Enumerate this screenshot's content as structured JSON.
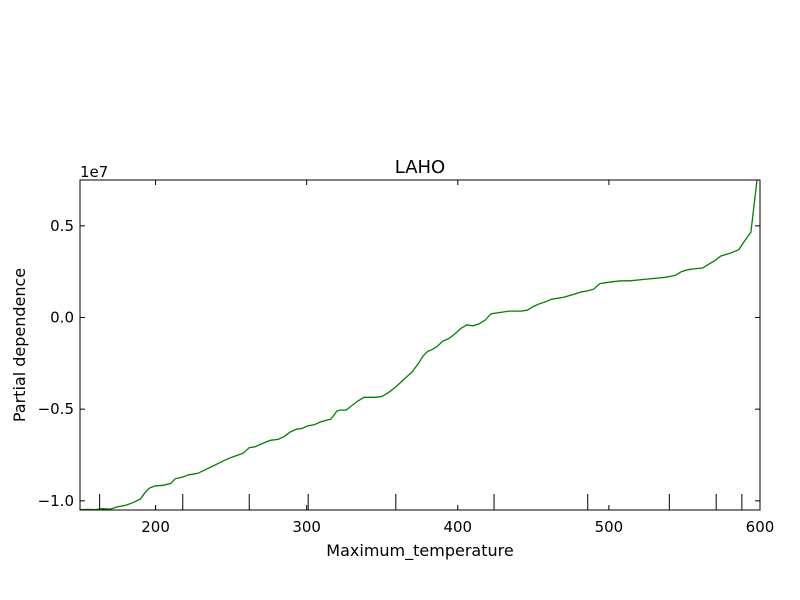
{
  "chart_data": {
    "type": "line",
    "title": "LAHO",
    "xlabel": "Maximum_temperature",
    "ylabel": "Partial dependence",
    "y_offset_label": "1e7",
    "xlim": [
      150,
      600
    ],
    "ylim": [
      -1.05,
      0.75
    ],
    "x_ticks": [
      200,
      300,
      400,
      500,
      600
    ],
    "x_tick_labels": [
      "200",
      "300",
      "400",
      "500",
      "600"
    ],
    "y_ticks": [
      -1.0,
      -0.5,
      0.0,
      0.5
    ],
    "y_tick_labels": [
      "−1.0",
      "−0.5",
      "0.0",
      "0.5"
    ],
    "grid": false,
    "line_color": "#007f00",
    "rug": [
      163,
      218,
      262,
      301,
      359,
      424,
      486,
      540,
      571,
      588
    ],
    "series": [
      {
        "x": [
          150,
          155,
          160,
          165,
          170,
          175,
          180,
          185,
          190,
          193,
          196,
          200,
          205,
          210,
          213,
          218,
          222,
          228,
          233,
          238,
          243,
          248,
          253,
          258,
          262,
          266,
          270,
          276,
          281,
          285,
          289,
          293,
          297,
          301,
          305,
          309,
          313,
          316,
          320,
          322,
          326,
          330,
          334,
          338,
          342,
          346,
          350,
          354,
          358,
          362,
          366,
          370,
          374,
          377,
          380,
          383,
          386,
          390,
          394,
          398,
          402,
          406,
          410,
          414,
          418,
          422,
          426,
          430,
          434,
          438,
          442,
          446,
          450,
          454,
          458,
          462,
          466,
          470,
          474,
          478,
          482,
          486,
          490,
          494,
          498,
          502,
          508,
          514,
          520,
          526,
          532,
          538,
          544,
          548,
          552,
          556,
          562,
          566,
          570,
          574,
          580,
          586,
          590,
          594,
          598
        ],
        "y": [
          -1.048,
          -1.047,
          -1.048,
          -1.043,
          -1.045,
          -1.032,
          -1.025,
          -1.01,
          -0.99,
          -0.955,
          -0.93,
          -0.918,
          -0.915,
          -0.905,
          -0.88,
          -0.87,
          -0.858,
          -0.85,
          -0.83,
          -0.81,
          -0.79,
          -0.77,
          -0.755,
          -0.74,
          -0.71,
          -0.705,
          -0.69,
          -0.67,
          -0.665,
          -0.65,
          -0.625,
          -0.61,
          -0.605,
          -0.59,
          -0.585,
          -0.57,
          -0.56,
          -0.555,
          -0.51,
          -0.505,
          -0.505,
          -0.48,
          -0.455,
          -0.435,
          -0.435,
          -0.435,
          -0.43,
          -0.41,
          -0.385,
          -0.355,
          -0.325,
          -0.295,
          -0.25,
          -0.21,
          -0.185,
          -0.175,
          -0.16,
          -0.13,
          -0.115,
          -0.09,
          -0.06,
          -0.04,
          -0.045,
          -0.035,
          -0.015,
          0.02,
          0.025,
          0.03,
          0.035,
          0.035,
          0.035,
          0.04,
          0.06,
          0.075,
          0.085,
          0.1,
          0.105,
          0.11,
          0.12,
          0.13,
          0.14,
          0.145,
          0.155,
          0.185,
          0.19,
          0.195,
          0.2,
          0.2,
          0.205,
          0.21,
          0.215,
          0.22,
          0.23,
          0.25,
          0.26,
          0.265,
          0.27,
          0.29,
          0.31,
          0.335,
          0.35,
          0.37,
          0.42,
          0.465,
          0.75
        ]
      }
    ]
  }
}
